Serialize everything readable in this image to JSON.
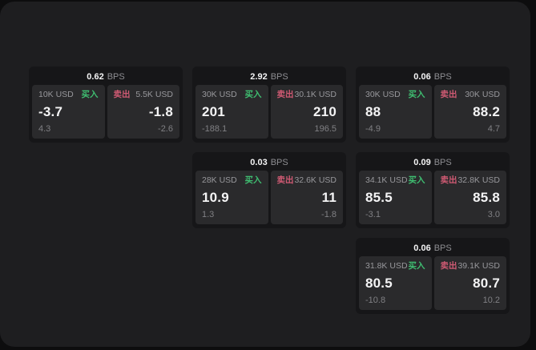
{
  "labels": {
    "unit": "BPS",
    "buy": "买入",
    "sell": "卖出"
  },
  "colors": {
    "buy": "#3fbe71",
    "sell": "#cf5a73"
  },
  "cards": [
    {
      "bps": "0.62",
      "buy": {
        "amount": "10K USD",
        "price": "-3.7",
        "delta": "4.3"
      },
      "sell": {
        "amount": "5.5K USD",
        "price": "-1.8",
        "delta": "-2.6"
      }
    },
    {
      "bps": "2.92",
      "buy": {
        "amount": "30K USD",
        "price": "201",
        "delta": "-188.1"
      },
      "sell": {
        "amount": "30.1K USD",
        "price": "210",
        "delta": "196.5"
      }
    },
    {
      "bps": "0.06",
      "buy": {
        "amount": "30K USD",
        "price": "88",
        "delta": "-4.9"
      },
      "sell": {
        "amount": "30K USD",
        "price": "88.2",
        "delta": "4.7"
      }
    },
    {
      "bps": "0.03",
      "buy": {
        "amount": "28K USD",
        "price": "10.9",
        "delta": "1.3"
      },
      "sell": {
        "amount": "32.6K USD",
        "price": "11",
        "delta": "-1.8"
      }
    },
    {
      "bps": "0.09",
      "buy": {
        "amount": "34.1K USD",
        "price": "85.5",
        "delta": "-3.1"
      },
      "sell": {
        "amount": "32.8K USD",
        "price": "85.8",
        "delta": "3.0"
      }
    },
    {
      "bps": "0.06",
      "buy": {
        "amount": "31.8K USD",
        "price": "80.5",
        "delta": "-10.8"
      },
      "sell": {
        "amount": "39.1K USD",
        "price": "80.7",
        "delta": "10.2"
      }
    }
  ]
}
